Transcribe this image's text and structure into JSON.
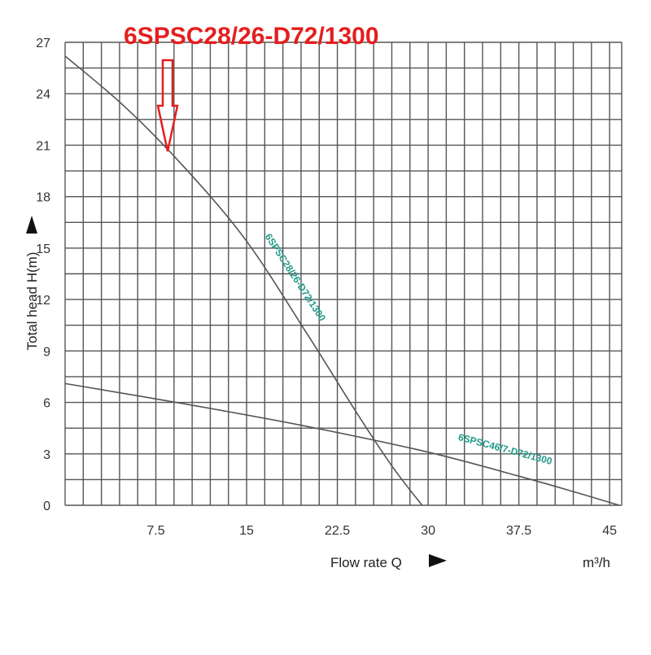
{
  "headline": "6SPSC28/26-D72/1300",
  "chart_data": {
    "type": "line",
    "title": "",
    "xlabel": "Flow rate Q",
    "xunit": "m³/h",
    "ylabel": "Total head H(m)",
    "xlim": [
      0,
      46
    ],
    "ylim": [
      0,
      27
    ],
    "grid": true,
    "x_ticks": [
      7.5,
      15,
      22.5,
      30,
      37.5,
      45
    ],
    "x_tick_labels": [
      "7.5",
      "15",
      "22.5",
      "30",
      "37.5",
      "45"
    ],
    "y_ticks": [
      0,
      3,
      6,
      9,
      12,
      15,
      18,
      21,
      24,
      27
    ],
    "y_tick_labels": [
      "0",
      "3",
      "6",
      "9",
      "12",
      "15",
      "18",
      "21",
      "24",
      "27"
    ],
    "series": [
      {
        "name": "6SPSC28/26-D72/1300",
        "x": [
          0,
          5,
          10,
          15,
          20,
          24,
          27,
          29.5
        ],
        "y": [
          26.2,
          23.2,
          19.6,
          15.4,
          10.0,
          5.5,
          2.3,
          0
        ]
      },
      {
        "name": "6SPSC46/7-D72/1300",
        "x": [
          0,
          10,
          20,
          30,
          37.5,
          42,
          45.8
        ],
        "y": [
          7.1,
          5.9,
          4.6,
          3.1,
          1.7,
          0.8,
          0
        ]
      }
    ]
  },
  "colors": {
    "curve": "#555555",
    "curve_label": "#1f9a8a",
    "headline": "#e41e1e",
    "grid": "#555555"
  }
}
